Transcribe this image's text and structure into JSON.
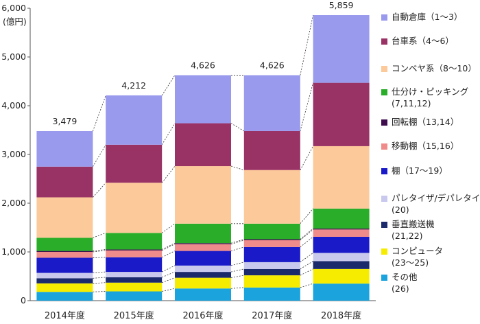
{
  "chart_data": {
    "type": "bar",
    "stacked": true,
    "title": "",
    "xlabel": "",
    "ylabel": "(億円)",
    "ylim": [
      0,
      6000
    ],
    "yticks": [
      "0",
      "1,000",
      "2,000",
      "3,000",
      "4,000",
      "5,000",
      "6,000"
    ],
    "grid": false,
    "legend_position": "right",
    "connector_lines": "dotted",
    "categories": [
      "2014年度",
      "2015年度",
      "2016年度",
      "2017年度",
      "2018年度"
    ],
    "totals": [
      "3,479",
      "4,212",
      "4,626",
      "4,626",
      "5,859"
    ],
    "series": [
      {
        "name": "その他",
        "name_sub": "(26)",
        "color": "#1aa3dd",
        "values": [
          180,
          190,
          250,
          270,
          350
        ]
      },
      {
        "name": "コンピュータ",
        "name_sub": "(23～25)",
        "color": "#f5ec00",
        "values": [
          175,
          180,
          220,
          250,
          300
        ]
      },
      {
        "name": "垂直搬送機",
        "name_sub": "(21,22)",
        "color": "#1b2a6b",
        "values": [
          105,
          110,
          120,
          130,
          160
        ]
      },
      {
        "name": "パレタイザ/デパレタイザ",
        "name_sub": "(20)",
        "color": "#c9c9ee",
        "values": [
          110,
          110,
          130,
          140,
          170
        ]
      },
      {
        "name": "棚（17～19）",
        "name_sub": "",
        "color": "#1a1ac8",
        "values": [
          310,
          300,
          300,
          310,
          330
        ]
      },
      {
        "name": "移動棚（15,16）",
        "name_sub": "",
        "color": "#f08b8b",
        "values": [
          120,
          140,
          140,
          140,
          150
        ]
      },
      {
        "name": "回転棚（13,14）",
        "name_sub": "",
        "color": "#3d0d4d",
        "values": [
          20,
          20,
          20,
          20,
          20
        ]
      },
      {
        "name": "仕分け・ピッキング",
        "name_sub": "(7,11,12)",
        "color": "#2aae2a",
        "values": [
          270,
          340,
          400,
          320,
          410
        ]
      },
      {
        "name": "コンベヤ系（8～10）",
        "name_sub": "",
        "color": "#fcc99a",
        "values": [
          830,
          1030,
          1180,
          1100,
          1280
        ]
      },
      {
        "name": "台車系（4～6）",
        "name_sub": "",
        "color": "#993366",
        "values": [
          630,
          780,
          880,
          800,
          1300
        ]
      },
      {
        "name": "自動倉庫（1～3）",
        "name_sub": "",
        "color": "#9999ee",
        "values": [
          729,
          1012,
          986,
          1146,
          1389
        ]
      }
    ]
  }
}
